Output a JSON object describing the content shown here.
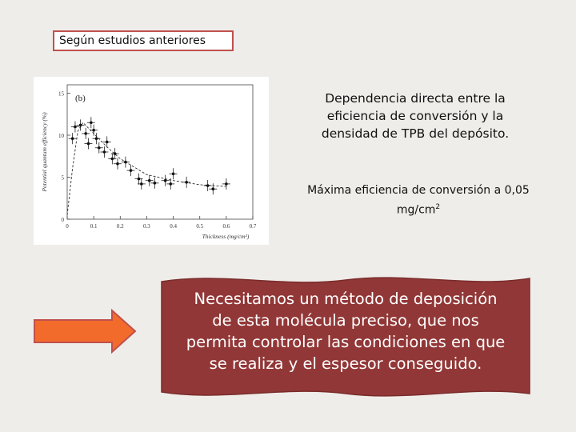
{
  "tag_label": "Según estudios anteriores",
  "heading": "Dependencia directa entre la eficiencia de conversión y la densidad de TPB del depósito.",
  "note": {
    "text": "Máxima eficiencia de conversión a 0,05 mg/cm",
    "superscript": "2"
  },
  "banner_text": "Necesitamos un método de deposición de esta molécula preciso, que nos permita controlar las condiciones en que se realiza y el espesor conseguido.",
  "colors": {
    "background": "#efede9",
    "tag_border": "#c0504d",
    "arrow_fill": "#f26b2a",
    "arrow_stroke": "#c0504d",
    "banner_fill": "#923737"
  },
  "icons": {
    "arrow": "right-arrow-icon"
  },
  "chart_data": {
    "type": "scatter",
    "panel_label": "(b)",
    "xlabel": "Thickness (mg/cm²)",
    "ylabel": "Potential quantum efficiency (%)",
    "x_ticks": [
      "0",
      "0.1",
      "0.2",
      "0.3",
      "0.4",
      "0.5",
      "0.6",
      "0.7"
    ],
    "y_ticks": [
      "0",
      "5",
      "10",
      "15"
    ],
    "xlim": [
      0,
      0.7
    ],
    "ylim": [
      0,
      16
    ],
    "series": [
      {
        "values": [
          [
            0.02,
            9.6
          ],
          [
            0.03,
            11.0
          ],
          [
            0.05,
            11.2
          ],
          [
            0.07,
            10.2
          ],
          [
            0.08,
            9.0
          ],
          [
            0.09,
            11.5
          ],
          [
            0.1,
            10.6
          ],
          [
            0.11,
            9.6
          ],
          [
            0.12,
            8.5
          ],
          [
            0.14,
            8.0
          ],
          [
            0.15,
            9.2
          ],
          [
            0.17,
            7.2
          ],
          [
            0.18,
            7.8
          ],
          [
            0.19,
            6.6
          ],
          [
            0.22,
            6.8
          ],
          [
            0.24,
            5.8
          ],
          [
            0.27,
            4.8
          ],
          [
            0.28,
            4.2
          ],
          [
            0.31,
            4.6
          ],
          [
            0.33,
            4.3
          ],
          [
            0.37,
            4.6
          ],
          [
            0.39,
            4.2
          ],
          [
            0.4,
            5.4
          ],
          [
            0.45,
            4.4
          ],
          [
            0.53,
            4.0
          ],
          [
            0.55,
            3.6
          ],
          [
            0.6,
            4.2
          ]
        ]
      }
    ],
    "fit": {
      "x": [
        0.0,
        0.02,
        0.04,
        0.06,
        0.1,
        0.15,
        0.2,
        0.3,
        0.4,
        0.5,
        0.6
      ],
      "y": [
        0.5,
        6.0,
        10.5,
        11.5,
        10.2,
        8.6,
        7.2,
        5.3,
        4.6,
        4.1,
        3.9
      ]
    }
  }
}
